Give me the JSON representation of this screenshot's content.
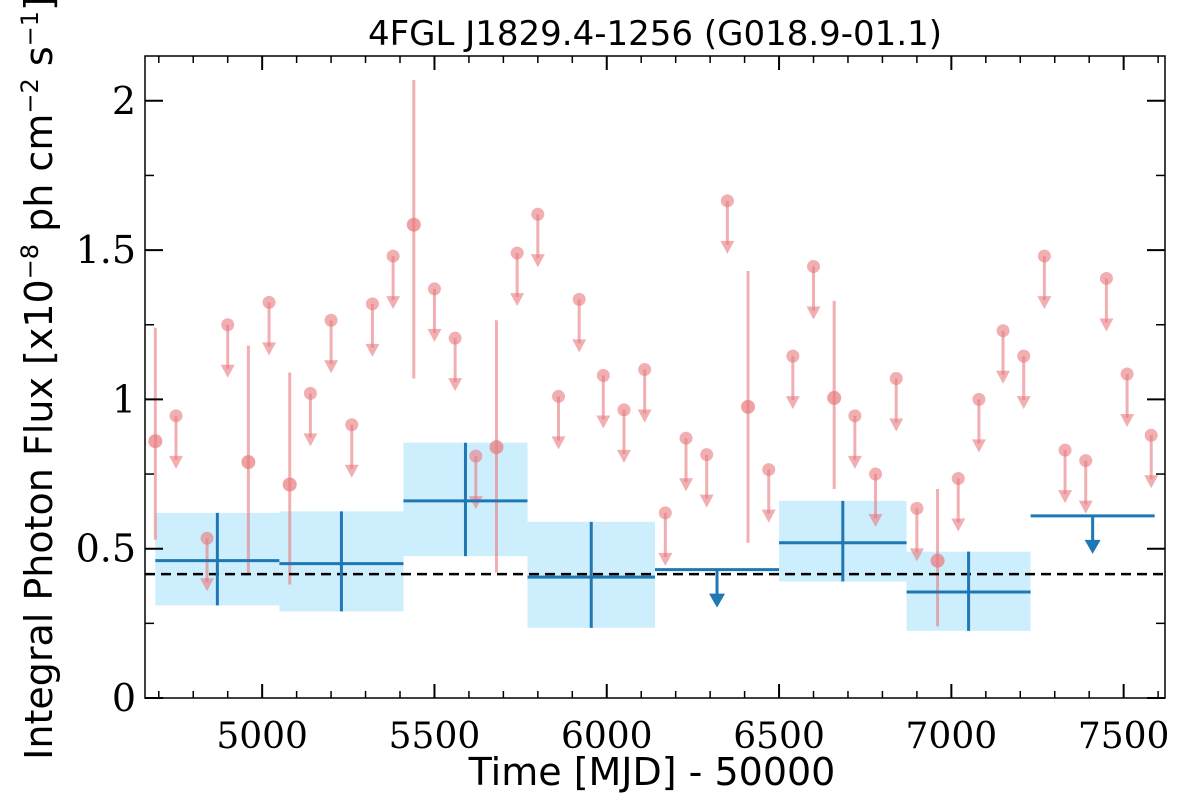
{
  "chart_data": {
    "type": "scatter",
    "title": "4FGL J1829.4-1256 (G018.9-01.1)",
    "xlabel": "Time [MJD] - 50000",
    "ylabel": "Integral Photon Flux [x10",
    "ylabel_sup1": "−8",
    "ylabel_mid": " ph cm",
    "ylabel_sup2": "−2",
    "ylabel_mid2": " s",
    "ylabel_sup3": "−1",
    "ylabel_end": "]",
    "xlim": [
      4660,
      7620
    ],
    "ylim": [
      0,
      2.15
    ],
    "xticks": [
      5000,
      5500,
      6000,
      6500,
      7000,
      7500
    ],
    "xtick_labels": [
      "5000",
      "5500",
      "6000",
      "6500",
      "7000",
      "7500"
    ],
    "yticks": [
      0,
      0.5,
      1,
      1.5,
      2
    ],
    "ytick_labels": [
      "0",
      "0.5",
      "1",
      "1.5",
      "2"
    ],
    "reference_level": 0.415,
    "colors": {
      "fine": "#e8797e",
      "coarse": "#1f77b4",
      "band": "#cdeefc",
      "reference": "#000000"
    },
    "series": [
      {
        "style": "fine-bins",
        "points": [
          {
            "x": 4690,
            "y": 0.86,
            "lo": 0.53,
            "hi": 1.24,
            "ul": false
          },
          {
            "x": 4750,
            "y": 0.945,
            "ul": true
          },
          {
            "x": 4840,
            "y": 0.535,
            "ul": true
          },
          {
            "x": 4900,
            "y": 1.25,
            "ul": true
          },
          {
            "x": 4960,
            "y": 0.79,
            "lo": 0.42,
            "hi": 1.18,
            "ul": false
          },
          {
            "x": 5020,
            "y": 1.325,
            "ul": true
          },
          {
            "x": 5080,
            "y": 0.715,
            "lo": 0.38,
            "hi": 1.09,
            "ul": false
          },
          {
            "x": 5140,
            "y": 1.02,
            "ul": true
          },
          {
            "x": 5200,
            "y": 1.265,
            "ul": true
          },
          {
            "x": 5260,
            "y": 0.915,
            "ul": true
          },
          {
            "x": 5320,
            "y": 1.32,
            "ul": true
          },
          {
            "x": 5380,
            "y": 1.48,
            "ul": true
          },
          {
            "x": 5440,
            "y": 1.585,
            "lo": 1.07,
            "hi": 2.07,
            "ul": false
          },
          {
            "x": 5500,
            "y": 1.37,
            "ul": true
          },
          {
            "x": 5560,
            "y": 1.205,
            "ul": true
          },
          {
            "x": 5620,
            "y": 0.81,
            "ul": true
          },
          {
            "x": 5680,
            "y": 0.84,
            "lo": 0.42,
            "hi": 1.265,
            "ul": false
          },
          {
            "x": 5740,
            "y": 1.49,
            "ul": true
          },
          {
            "x": 5800,
            "y": 1.62,
            "ul": true
          },
          {
            "x": 5860,
            "y": 1.01,
            "ul": true
          },
          {
            "x": 5920,
            "y": 1.335,
            "ul": true
          },
          {
            "x": 5990,
            "y": 1.08,
            "ul": true
          },
          {
            "x": 6050,
            "y": 0.965,
            "ul": true
          },
          {
            "x": 6110,
            "y": 1.1,
            "ul": true
          },
          {
            "x": 6170,
            "y": 0.62,
            "ul": true
          },
          {
            "x": 6230,
            "y": 0.87,
            "ul": true
          },
          {
            "x": 6290,
            "y": 0.815,
            "ul": true
          },
          {
            "x": 6350,
            "y": 1.665,
            "ul": true
          },
          {
            "x": 6410,
            "y": 0.975,
            "lo": 0.52,
            "hi": 1.43,
            "ul": false
          },
          {
            "x": 6470,
            "y": 0.765,
            "ul": true
          },
          {
            "x": 6540,
            "y": 1.145,
            "ul": true
          },
          {
            "x": 6600,
            "y": 1.445,
            "ul": true
          },
          {
            "x": 6660,
            "y": 1.005,
            "lo": 0.7,
            "hi": 1.33,
            "ul": false
          },
          {
            "x": 6720,
            "y": 0.945,
            "ul": true
          },
          {
            "x": 6780,
            "y": 0.75,
            "ul": true
          },
          {
            "x": 6840,
            "y": 1.07,
            "ul": true
          },
          {
            "x": 6900,
            "y": 0.635,
            "ul": true
          },
          {
            "x": 6960,
            "y": 0.46,
            "lo": 0.24,
            "hi": 0.7,
            "ul": false
          },
          {
            "x": 7020,
            "y": 0.735,
            "ul": true
          },
          {
            "x": 7080,
            "y": 1.0,
            "ul": true
          },
          {
            "x": 7150,
            "y": 1.23,
            "ul": true
          },
          {
            "x": 7210,
            "y": 1.145,
            "ul": true
          },
          {
            "x": 7270,
            "y": 1.48,
            "ul": true
          },
          {
            "x": 7330,
            "y": 0.83,
            "ul": true
          },
          {
            "x": 7390,
            "y": 0.795,
            "ul": true
          },
          {
            "x": 7450,
            "y": 1.405,
            "ul": true
          },
          {
            "x": 7510,
            "y": 1.085,
            "ul": true
          },
          {
            "x": 7580,
            "y": 0.88,
            "ul": true
          }
        ]
      },
      {
        "style": "coarse-bins",
        "bins": [
          {
            "x0": 4690,
            "x1": 5050,
            "xc": 4870,
            "y": 0.46,
            "lo": 0.31,
            "hi": 0.62,
            "band_lo": 0.31,
            "band_hi": 0.62,
            "ul": false
          },
          {
            "x0": 5050,
            "x1": 5410,
            "xc": 5230,
            "y": 0.45,
            "lo": 0.29,
            "hi": 0.625,
            "band_lo": 0.29,
            "band_hi": 0.625,
            "ul": false
          },
          {
            "x0": 5410,
            "x1": 5770,
            "xc": 5590,
            "y": 0.66,
            "lo": 0.475,
            "hi": 0.855,
            "band_lo": 0.475,
            "band_hi": 0.855,
            "ul": false
          },
          {
            "x0": 5770,
            "x1": 6140,
            "xc": 5955,
            "y": 0.405,
            "lo": 0.235,
            "hi": 0.59,
            "band_lo": 0.235,
            "band_hi": 0.59,
            "ul": false
          },
          {
            "x0": 6140,
            "x1": 6500,
            "xc": 6320,
            "y": 0.43,
            "ul": true
          },
          {
            "x0": 6500,
            "x1": 6870,
            "xc": 6685,
            "y": 0.52,
            "lo": 0.39,
            "hi": 0.66,
            "band_lo": 0.39,
            "band_hi": 0.66,
            "ul": false
          },
          {
            "x0": 6870,
            "x1": 7230,
            "xc": 7050,
            "y": 0.355,
            "lo": 0.225,
            "hi": 0.49,
            "band_lo": 0.225,
            "band_hi": 0.49,
            "ul": false
          },
          {
            "x0": 7230,
            "x1": 7590,
            "xc": 7410,
            "y": 0.61,
            "ul": true
          }
        ]
      }
    ]
  }
}
